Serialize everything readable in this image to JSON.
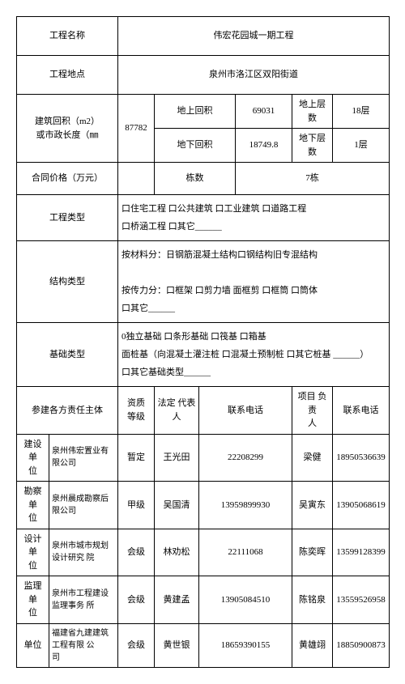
{
  "r1": {
    "label": "工程名称",
    "value": "伟宏花园城一期工程"
  },
  "r2": {
    "label": "工程地点",
    "value": "泉州市洛江区双阳街道"
  },
  "r3": {
    "label": "建筑回积（m2）\n或市政长度（㎜",
    "area": "87782",
    "ag_label": "地上回积",
    "ag_val": "69031",
    "af_label": "地上层数",
    "af_val": "18层",
    "bg_label": "地下回积",
    "bg_val": "18749.8",
    "bf_label": "地下层数",
    "bf_val": "1层"
  },
  "r4": {
    "label": "合同价格（万元）",
    "b_label": "栋数",
    "b_val": "7栋"
  },
  "r5": {
    "label": "工程类型",
    "line1": "口住宅工程  口公共建筑  口工业建筑          口道路工程",
    "line2": "口桥涵工程    口其它______"
  },
  "r6": {
    "label": "结构类型",
    "line1": "按材料分：日钢筋混凝土结构口钢结构旧专混结构",
    "line2": "按传力分：口框架  口剪力墙  面框剪  口框筒  口筒体",
    "line3": "口其它______"
  },
  "r7": {
    "label": "基础类型",
    "line1": "0独立基础    口条形基础    口筏基  口箱基",
    "line2": "面桩基（向混凝土灌注桩    口混凝土预制桩  口其它桩基 ______）",
    "line3": "口其它基础类型______"
  },
  "hdr": {
    "c1": "参建各方责任主体",
    "c2": "资质\n等级",
    "c3": "法定  代表\n人",
    "c4": "联系电话",
    "c5": "项目  负责\n人",
    "c6": "联系电话"
  },
  "rows": [
    {
      "role": "建设  单\n位",
      "org": "泉州伟宏置业有限公司",
      "grade": "暂定",
      "rep": "王光田",
      "tel1": "22208299",
      "mgr": "梁健",
      "tel2": "18950536639"
    },
    {
      "role": "勘察  单\n位",
      "org": "泉州晨成勘察后限公司",
      "grade": "甲级",
      "rep": "吴国清",
      "tel1": "13959899930",
      "mgr": "吴寅东",
      "tel2": "13905068619"
    },
    {
      "role": "设计  单\n位",
      "org": "泉州市城市规划设计研究  院",
      "grade": "会级",
      "rep": "林劝松",
      "tel1": "22111068",
      "mgr": "陈奕晖",
      "tel2": "13599128399"
    },
    {
      "role": "监理  单\n位",
      "org": "泉州市工程建设监理事务  所",
      "grade": "会级",
      "rep": "黄建孟",
      "tel1": "13905084510",
      "mgr": "陈铭泉",
      "tel2": "13559526958"
    },
    {
      "role": "单位",
      "org": "福建省九建建筑工程有限  公\n司",
      "grade": "会级",
      "rep": "黄世银",
      "tel1": "18659390155",
      "mgr": "黄雄翊",
      "tel2": "18850900873"
    }
  ]
}
